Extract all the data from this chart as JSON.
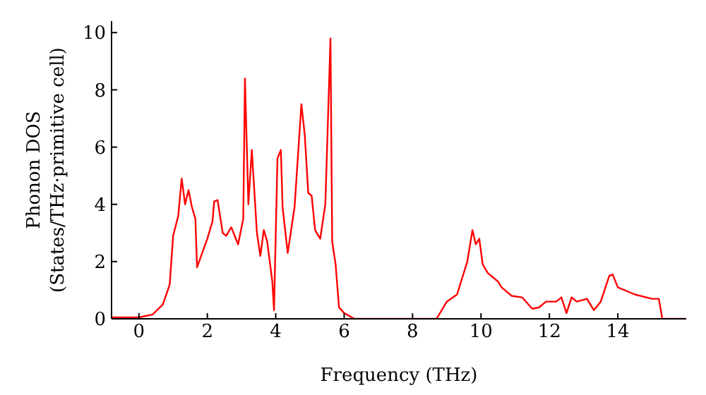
{
  "chart_data": {
    "type": "line",
    "xlabel": "Frequency (THz)",
    "ylabel": "Phonon DOS\n(States/THz·primitive cell)",
    "x": [
      -0.8,
      0,
      0.4,
      0.7,
      0.9,
      1.0,
      1.15,
      1.25,
      1.35,
      1.45,
      1.55,
      1.65,
      1.7,
      1.85,
      2.0,
      2.15,
      2.2,
      2.3,
      2.45,
      2.55,
      2.7,
      2.9,
      3.05,
      3.1,
      3.2,
      3.3,
      3.45,
      3.55,
      3.65,
      3.75,
      3.9,
      3.95,
      4.05,
      4.15,
      4.2,
      4.35,
      4.55,
      4.75,
      4.85,
      4.95,
      5.05,
      5.15,
      5.3,
      5.45,
      5.6,
      5.65,
      5.75,
      5.85,
      6.0,
      6.3,
      8.7,
      9.0,
      9.3,
      9.6,
      9.75,
      9.85,
      9.95,
      10.05,
      10.2,
      10.5,
      10.6,
      10.9,
      11.2,
      11.5,
      11.7,
      11.9,
      12.2,
      12.35,
      12.5,
      12.65,
      12.8,
      13.1,
      13.3,
      13.5,
      13.75,
      13.85,
      14.0,
      14.5,
      15.0,
      15.2,
      15.3,
      16
    ],
    "series": [
      {
        "color": "#ff0000",
        "values": [
          0.05,
          0.05,
          0.15,
          0.5,
          1.2,
          2.9,
          3.6,
          4.9,
          4.0,
          4.5,
          3.9,
          3.5,
          1.8,
          2.3,
          2.8,
          3.4,
          4.1,
          4.15,
          3.0,
          2.9,
          3.2,
          2.6,
          3.5,
          8.4,
          4.0,
          5.9,
          3.0,
          2.2,
          3.1,
          2.7,
          1.3,
          0.3,
          5.6,
          5.9,
          3.9,
          2.3,
          3.9,
          7.5,
          6.4,
          4.4,
          4.3,
          3.1,
          2.8,
          4.0,
          9.8,
          2.7,
          1.9,
          0.4,
          0.2,
          0.0,
          0.0,
          0.6,
          0.85,
          2.0,
          3.1,
          2.6,
          2.8,
          1.9,
          1.6,
          1.3,
          1.1,
          0.8,
          0.75,
          0.35,
          0.4,
          0.6,
          0.6,
          0.75,
          0.2,
          0.75,
          0.6,
          0.7,
          0.3,
          0.6,
          1.5,
          1.55,
          1.1,
          0.85,
          0.7,
          0.7,
          0.0,
          0.0
        ]
      }
    ],
    "xlim": [
      -0.8,
      16
    ],
    "xticks": [
      0,
      2,
      4,
      6,
      8,
      10,
      12,
      14
    ],
    "ylim": [
      0,
      10.4
    ],
    "yticks": [
      0,
      2,
      4,
      6,
      8,
      10
    ],
    "grid": false,
    "legend": false,
    "marker": "none",
    "line_style": "solid"
  }
}
